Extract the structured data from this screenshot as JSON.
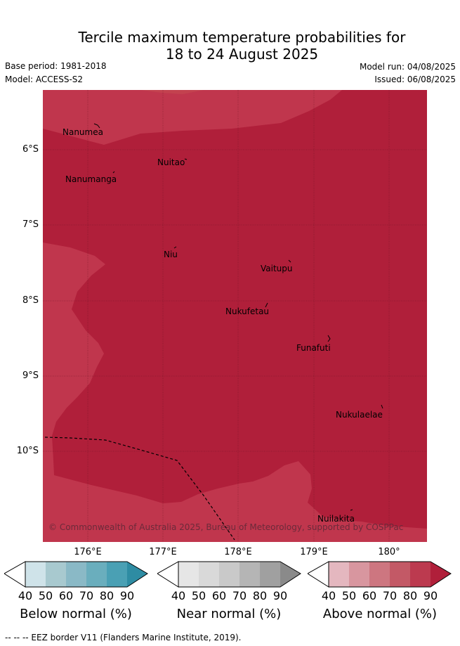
{
  "title": {
    "line1": "Tercile maximum temperature probabilities for",
    "line2": "18 to 24 August 2025"
  },
  "meta": {
    "base_period": "Base period: 1981-2018",
    "model": "Model: ACCESS-S2",
    "model_run": "Model run: 04/08/2025",
    "issued": "Issued: 06/08/2025"
  },
  "axes": {
    "y_labels": [
      "6°S",
      "7°S",
      "8°S",
      "9°S",
      "10°S"
    ],
    "x_labels": [
      "176°E",
      "177°E",
      "178°E",
      "179°E",
      "180°"
    ]
  },
  "places": [
    {
      "name": "Nanumea"
    },
    {
      "name": "Nuitao"
    },
    {
      "name": "Nanumanga"
    },
    {
      "name": "Niu"
    },
    {
      "name": "Vaitupu"
    },
    {
      "name": "Nukufetau"
    },
    {
      "name": "Funafuti"
    },
    {
      "name": "Nukulaelae"
    },
    {
      "name": "Nuilakita"
    }
  ],
  "copyright": "© Commonwealth of Australia 2025, Bureau of Meteorology, supported by COSPPac",
  "colors": {
    "above_70_80": "#c0364d",
    "above_80_90": "#b01f3a",
    "below_scale": [
      "#cfe3e9",
      "#a8c9cf",
      "#8ab9c6",
      "#6aaebd",
      "#4aa0b4",
      "#2e8ca3"
    ],
    "near_scale": [
      "#e6e6e6",
      "#d9d9d9",
      "#c9c9c9",
      "#b5b5b5",
      "#a0a0a0",
      "#8a8a8a"
    ],
    "above_scale": [
      "#e4b7bf",
      "#d8969f",
      "#cd7680",
      "#c35966",
      "#bc3a4f",
      "#b01f3a"
    ]
  },
  "colorbars": {
    "ticks": [
      "40",
      "50",
      "60",
      "70",
      "80",
      "90"
    ],
    "below_label": "Below normal (%)",
    "near_label": "Near normal (%)",
    "above_label": "Above normal (%)"
  },
  "footnote": "--  --  -- EEZ border V11 (Flanders Marine Institute, 2019)."
}
